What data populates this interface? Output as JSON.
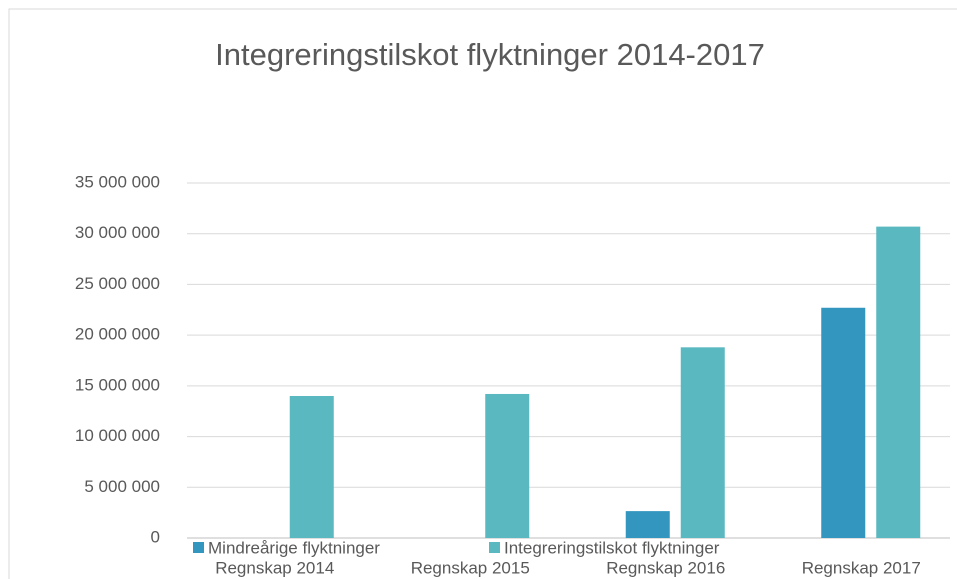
{
  "chart_data": {
    "type": "bar",
    "title": "Integreringstilskot flyktninger 2014-2017",
    "categories": [
      "Regnskap 2014",
      "Regnskap 2015",
      "Regnskap 2016",
      "Regnskap 2017"
    ],
    "series": [
      {
        "name": "Mindreårige flyktninger",
        "color": "#3296be",
        "values": [
          0,
          0,
          2650000,
          22700000
        ]
      },
      {
        "name": "Integreringstilskot flyktninger",
        "color": "#5ab8c0",
        "values": [
          14000000,
          14200000,
          18800000,
          30700000
        ]
      }
    ],
    "ylim": [
      0,
      35000000
    ],
    "yticks": [
      0,
      {
        "value": 5000000,
        "label": "5 000 000"
      },
      {
        "value": 10000000,
        "label": "10 000 000"
      },
      {
        "value": 15000000,
        "label": "15 000 000"
      },
      {
        "value": 20000000,
        "label": "20 000 000"
      },
      {
        "value": 25000000,
        "label": "25 000 000"
      },
      {
        "value": 30000000,
        "label": "30 000 000"
      },
      {
        "value": 35000000,
        "label": "35 000 000"
      }
    ],
    "grid": true,
    "legend": "bottom"
  }
}
